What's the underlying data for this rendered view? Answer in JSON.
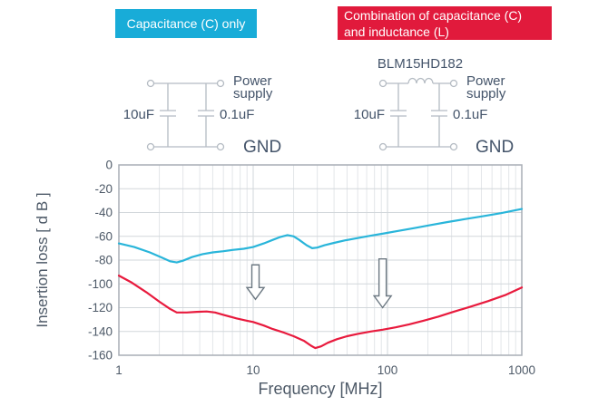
{
  "legend": {
    "c_only": {
      "label": "Capacitance (C) only",
      "color": "#18acd8"
    },
    "c_and_l": {
      "label_lines": [
        "Combination of capacitance (C)",
        "and inductance (L)"
      ],
      "color": "#e11a3c"
    }
  },
  "circuits": {
    "left": {
      "cap1": "10uF",
      "cap2": "0.1uF",
      "power": [
        "Power",
        "supply"
      ],
      "gnd": "GND"
    },
    "right": {
      "part_number": "BLM15HD182",
      "cap1": "10uF",
      "cap2": "0.1uF",
      "power": [
        "Power",
        "supply"
      ],
      "gnd": "GND"
    }
  },
  "chart_data": {
    "type": "line",
    "x_axis": {
      "label": "Frequency [MHz]",
      "scale": "log",
      "min": 1,
      "max": 1000,
      "ticks": [
        1,
        10,
        100,
        1000
      ]
    },
    "y_axis": {
      "label": "Insertion loss [ d B ]",
      "min": -160,
      "max": 0,
      "step": 20,
      "ticks": [
        0,
        -20,
        -40,
        -60,
        -80,
        -100,
        -120,
        -140,
        -160
      ]
    },
    "grid": {
      "major_color": "#d2d7db",
      "minor_color": "#e3e6e9",
      "border_color": "#a8aeb5",
      "tick_label_color": "#4e5a68"
    },
    "series": [
      {
        "name": "Capacitance (C) only",
        "color": "#29b5da",
        "points": [
          [
            1,
            -66
          ],
          [
            1.3,
            -69
          ],
          [
            1.7,
            -73.5
          ],
          [
            2.1,
            -78
          ],
          [
            2.4,
            -81
          ],
          [
            2.7,
            -82
          ],
          [
            3,
            -80.5
          ],
          [
            3.5,
            -77.5
          ],
          [
            4.2,
            -75
          ],
          [
            5,
            -73.5
          ],
          [
            6,
            -72.5
          ],
          [
            7,
            -71.5
          ],
          [
            8.5,
            -70.5
          ],
          [
            10,
            -69
          ],
          [
            12,
            -66
          ],
          [
            14,
            -63
          ],
          [
            16,
            -60.5
          ],
          [
            18,
            -59
          ],
          [
            20,
            -60
          ],
          [
            22,
            -63
          ],
          [
            25,
            -67.5
          ],
          [
            27.5,
            -70
          ],
          [
            30,
            -69.5
          ],
          [
            34,
            -67.5
          ],
          [
            40,
            -65.5
          ],
          [
            48,
            -63.5
          ],
          [
            60,
            -61.5
          ],
          [
            75,
            -59.5
          ],
          [
            95,
            -57.5
          ],
          [
            120,
            -55.5
          ],
          [
            160,
            -53
          ],
          [
            210,
            -50.5
          ],
          [
            280,
            -48
          ],
          [
            380,
            -45.5
          ],
          [
            520,
            -43
          ],
          [
            700,
            -40.5
          ],
          [
            1000,
            -37
          ]
        ]
      },
      {
        "name": "Combination of capacitance (C) and inductance (L)",
        "color": "#e81a3d",
        "points": [
          [
            1,
            -93
          ],
          [
            1.25,
            -99
          ],
          [
            1.6,
            -107
          ],
          [
            2,
            -115
          ],
          [
            2.4,
            -121
          ],
          [
            2.7,
            -124
          ],
          [
            3.2,
            -124
          ],
          [
            3.8,
            -123.5
          ],
          [
            4.5,
            -123.2
          ],
          [
            5.2,
            -124
          ],
          [
            6,
            -126
          ],
          [
            7.5,
            -129
          ],
          [
            9,
            -131
          ],
          [
            10,
            -132
          ],
          [
            12,
            -135
          ],
          [
            14,
            -138
          ],
          [
            17,
            -141
          ],
          [
            20,
            -144
          ],
          [
            24,
            -148
          ],
          [
            27,
            -152
          ],
          [
            29,
            -154
          ],
          [
            32,
            -152.5
          ],
          [
            36,
            -149.5
          ],
          [
            42,
            -146.5
          ],
          [
            50,
            -144
          ],
          [
            60,
            -142
          ],
          [
            75,
            -140
          ],
          [
            92,
            -138.5
          ],
          [
            115,
            -136.5
          ],
          [
            145,
            -134
          ],
          [
            185,
            -131
          ],
          [
            240,
            -127.5
          ],
          [
            310,
            -123.5
          ],
          [
            420,
            -119
          ],
          [
            560,
            -114.5
          ],
          [
            750,
            -109.5
          ],
          [
            1000,
            -103
          ]
        ]
      }
    ],
    "annotations": {
      "arrows": [
        {
          "x_mhz": 10.4,
          "from_db": -84,
          "to_db": -113
        },
        {
          "x_mhz": 92,
          "from_db": -79,
          "to_db": -120
        }
      ]
    }
  }
}
